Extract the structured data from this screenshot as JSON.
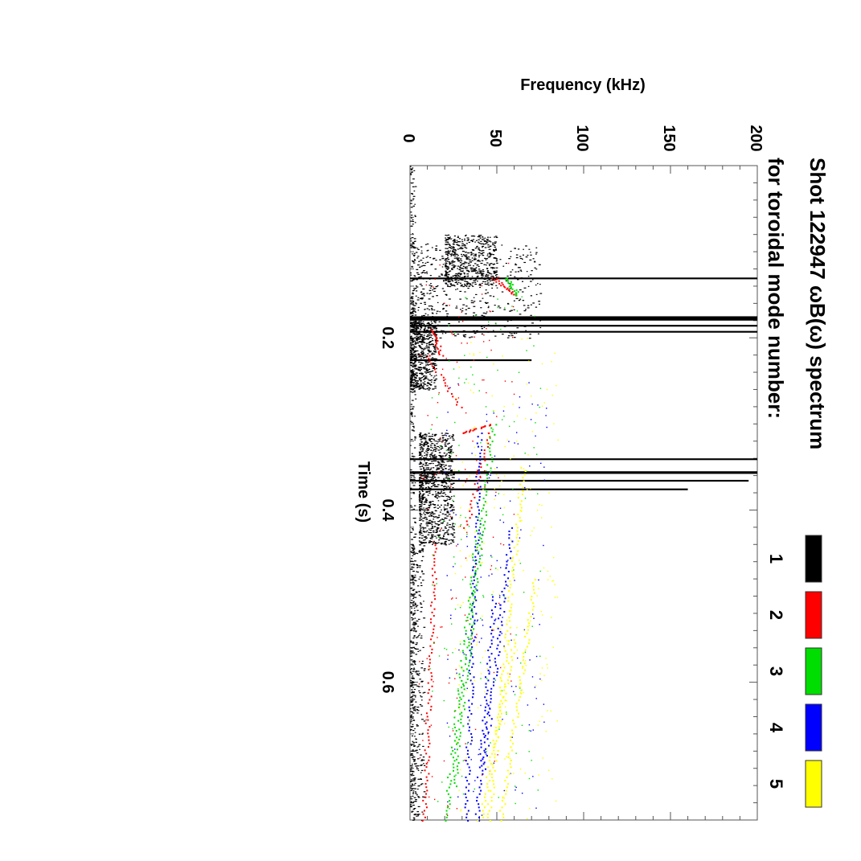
{
  "chart_data": {
    "type": "scatter",
    "title": "Shot 122947 ωB(ω) spectrum",
    "subtitle": "for toroidal mode number:",
    "xlabel": "Time (s)",
    "ylabel": "Frequency (kHz)",
    "xlim": [
      0.0,
      0.76
    ],
    "ylim": [
      0,
      200
    ],
    "x_ticks": [
      "0.2",
      "0.4",
      "0.6"
    ],
    "y_ticks": [
      "0",
      "50",
      "100",
      "150",
      "200"
    ],
    "legend": {
      "placement": "right",
      "entries": [
        "1",
        "2",
        "3",
        "4",
        "5"
      ]
    },
    "series": [
      {
        "name": "1",
        "color": "#000000",
        "bands": [
          {
            "t": [
              0.0,
              0.76
            ],
            "f": [
              0,
              3
            ],
            "n": 380
          },
          {
            "t": [
              0.08,
              0.14
            ],
            "f": [
              20,
              50
            ],
            "n": 500
          },
          {
            "t": [
              0.09,
              0.2
            ],
            "f": [
              0,
              75
            ],
            "n": 550
          },
          {
            "t": [
              0.18,
              0.26
            ],
            "f": [
              0,
              15
            ],
            "n": 600
          },
          {
            "t": [
              0.31,
              0.44
            ],
            "f": [
              5,
              25
            ],
            "n": 900
          },
          {
            "t": [
              0.44,
              0.76
            ],
            "f": [
              0,
              8
            ],
            "n": 300
          }
        ],
        "streaks": [
          {
            "t": 0.175,
            "f": [
              0,
              200
            ],
            "w": 0.005
          },
          {
            "t": 0.185,
            "f": [
              0,
              200
            ],
            "w": 0.002
          },
          {
            "t": 0.192,
            "f": [
              0,
              200
            ],
            "w": 0.002
          },
          {
            "t": 0.13,
            "f": [
              0,
              200
            ],
            "w": 0.002
          },
          {
            "t": 0.225,
            "f": [
              0,
              70
            ],
            "w": 0.002
          },
          {
            "t": 0.34,
            "f": [
              0,
              200
            ],
            "w": 0.002
          },
          {
            "t": 0.355,
            "f": [
              0,
              200
            ],
            "w": 0.003
          },
          {
            "t": 0.365,
            "f": [
              0,
              195
            ],
            "w": 0.002
          },
          {
            "t": 0.375,
            "f": [
              0,
              160
            ],
            "w": 0.002
          }
        ]
      },
      {
        "name": "2",
        "color": "#ff0000",
        "tracks": [
          {
            "t": [
              0.13,
              0.15
            ],
            "f": [
              48,
              60
            ]
          },
          {
            "t": [
              0.19,
              0.22
            ],
            "f": [
              12,
              18
            ]
          },
          {
            "t": [
              0.22,
              0.28
            ],
            "f": [
              10,
              28
            ]
          },
          {
            "t": [
              0.31,
              0.42
            ],
            "f": [
              45,
              32
            ]
          },
          {
            "t": [
              0.31,
              0.3
            ],
            "f": [
              30,
              46
            ]
          },
          {
            "t": [
              0.44,
              0.76
            ],
            "f": [
              14,
              8
            ]
          }
        ],
        "scatter": {
          "t": [
            0.1,
            0.76
          ],
          "f": [
            5,
            60
          ],
          "n": 140
        }
      },
      {
        "name": "3",
        "color": "#00dd00",
        "tracks": [
          {
            "t": [
              0.13,
              0.15
            ],
            "f": [
              55,
              62
            ]
          },
          {
            "t": [
              0.3,
              0.72
            ],
            "f": [
              48,
              25
            ]
          },
          {
            "t": [
              0.4,
              0.76
            ],
            "f": [
              40,
              20
            ]
          }
        ],
        "scatter": {
          "t": [
            0.15,
            0.76
          ],
          "f": [
            10,
            75
          ],
          "n": 150
        }
      },
      {
        "name": "4",
        "color": "#0000ff",
        "tracks": [
          {
            "t": [
              0.31,
              0.76
            ],
            "f": [
              40,
              32
            ]
          },
          {
            "t": [
              0.42,
              0.7
            ],
            "f": [
              58,
              42
            ]
          },
          {
            "t": [
              0.5,
              0.76
            ],
            "f": [
              48,
              38
            ]
          }
        ],
        "scatter": {
          "t": [
            0.25,
            0.76
          ],
          "f": [
            20,
            80
          ],
          "n": 150
        }
      },
      {
        "name": "5",
        "color": "#ffff00",
        "tracks": [
          {
            "t": [
              0.35,
              0.76
            ],
            "f": [
              65,
              45
            ]
          },
          {
            "t": [
              0.48,
              0.76
            ],
            "f": [
              72,
              52
            ]
          },
          {
            "t": [
              0.55,
              0.76
            ],
            "f": [
              60,
              40
            ]
          }
        ],
        "scatter": {
          "t": [
            0.2,
            0.76
          ],
          "f": [
            25,
            85
          ],
          "n": 220
        }
      }
    ]
  }
}
